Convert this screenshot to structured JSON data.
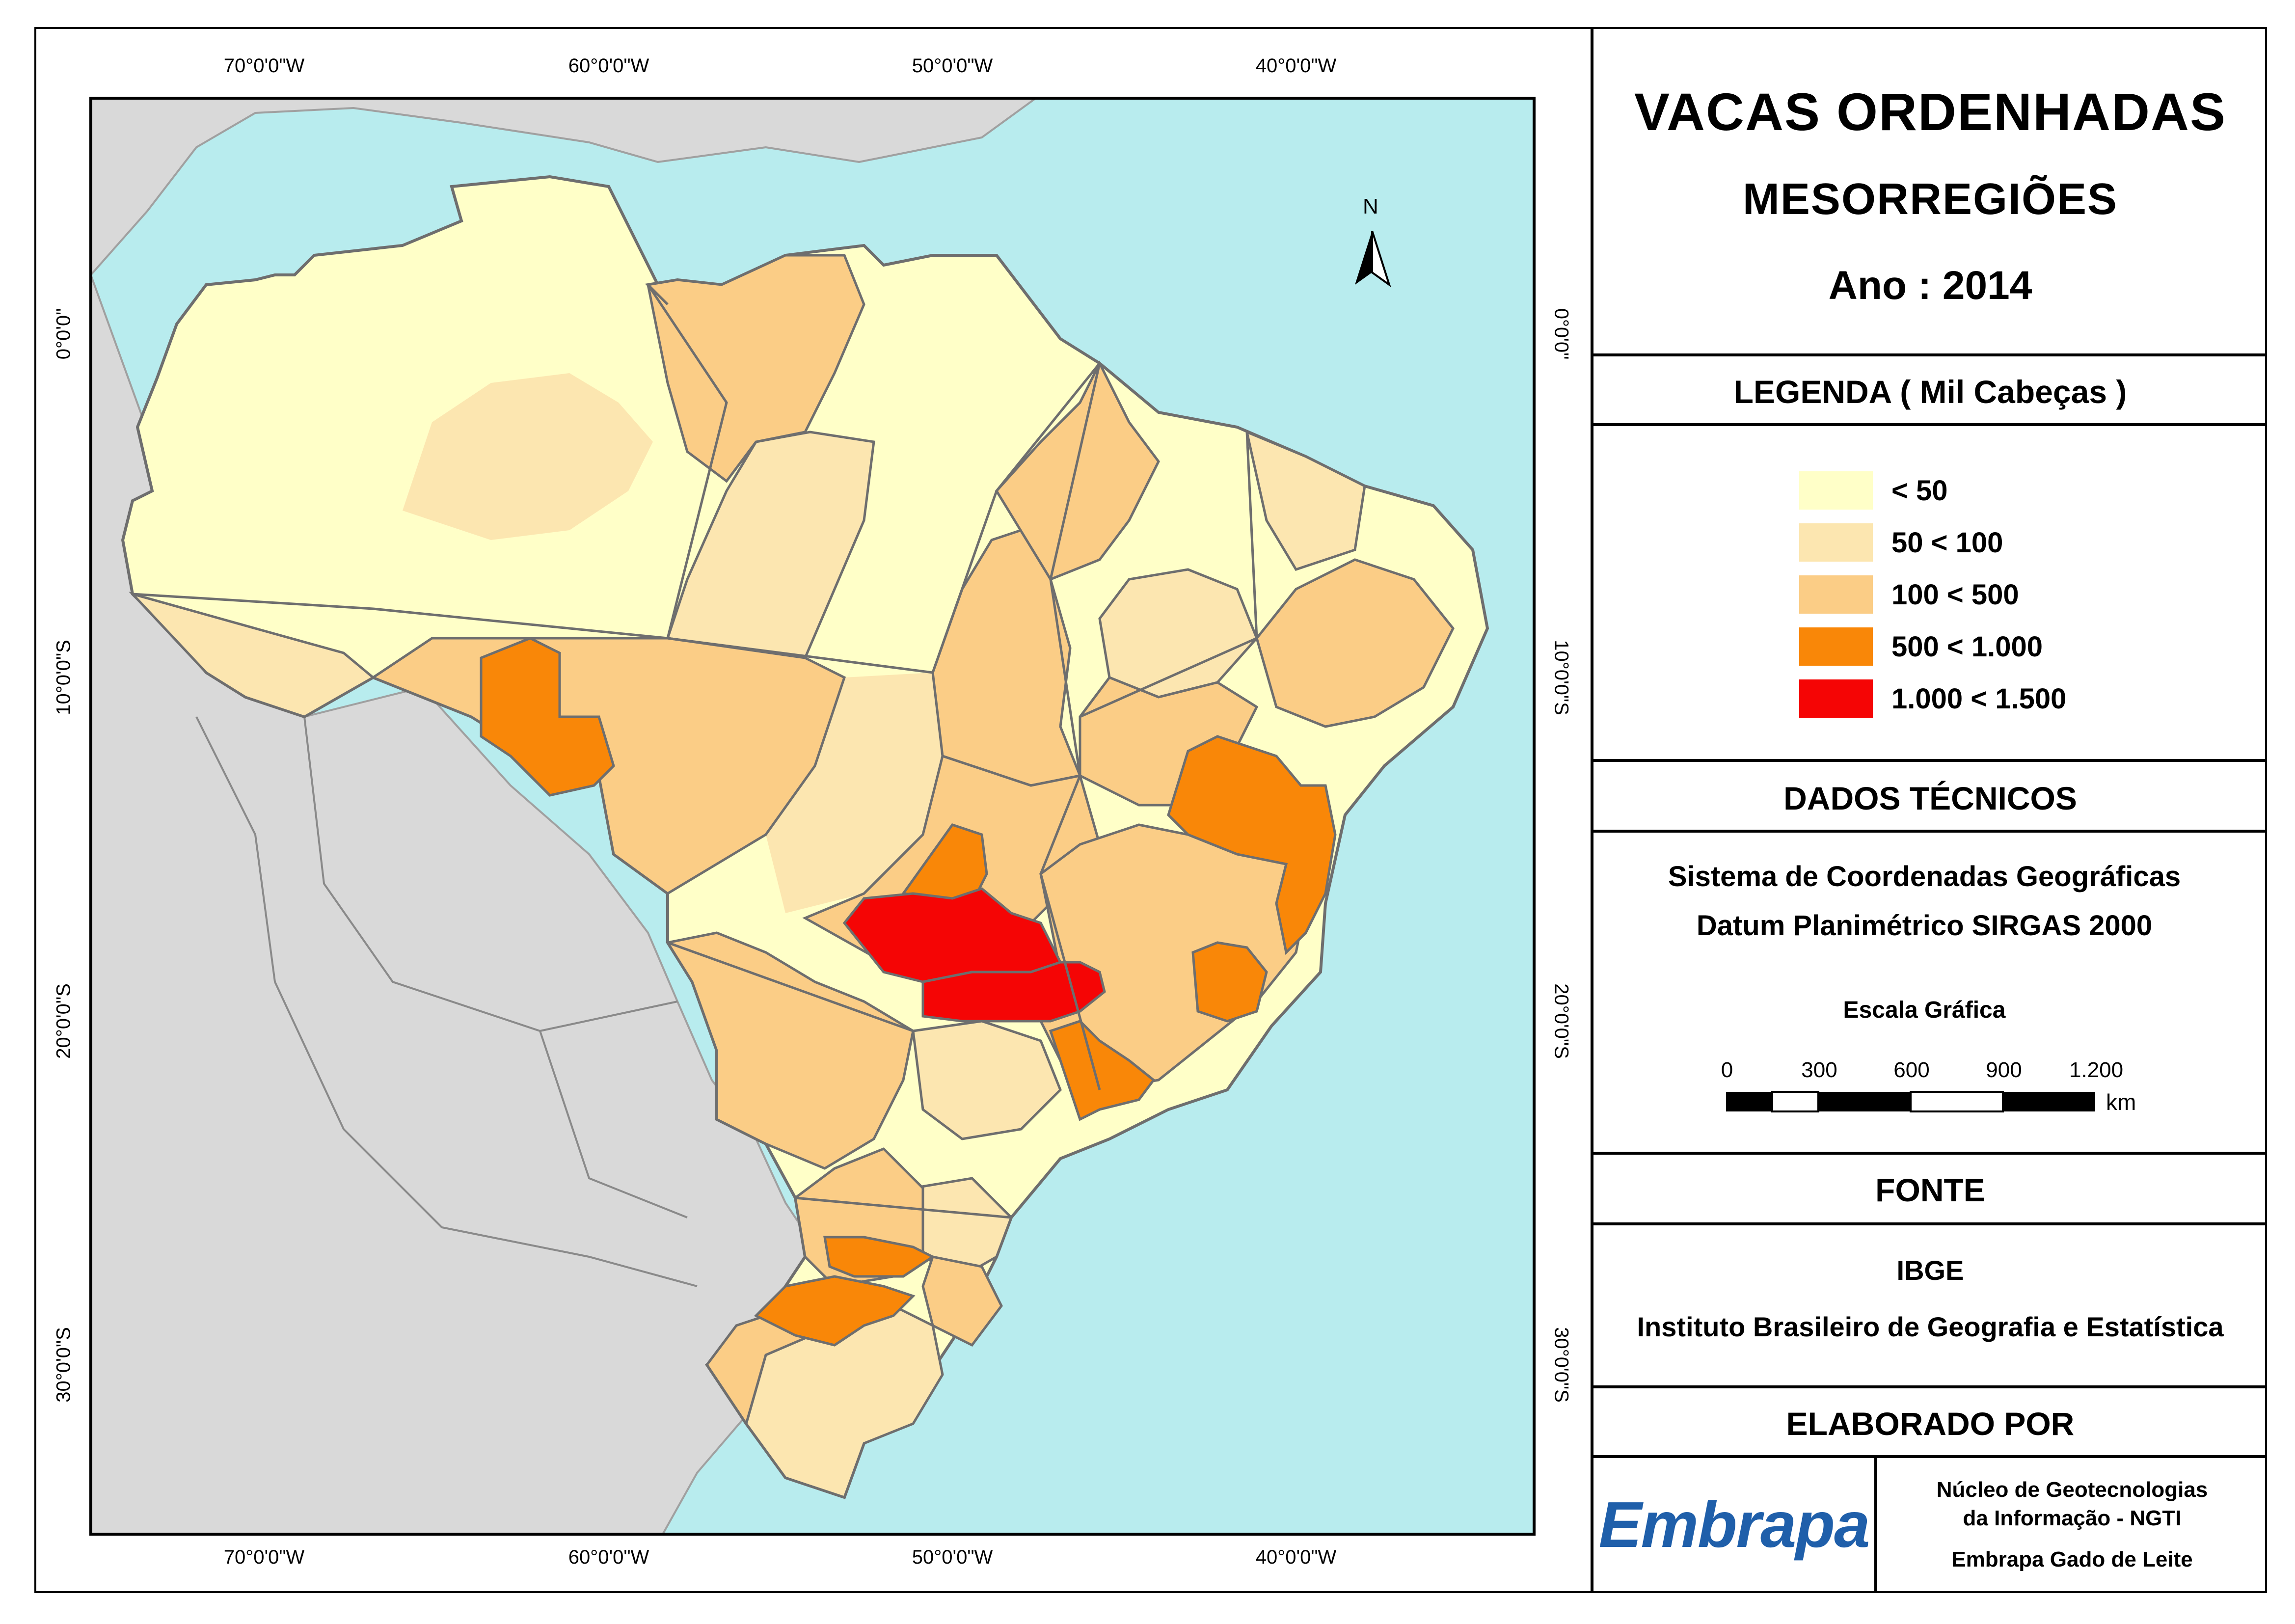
{
  "title": {
    "line1": "VACAS ORDENHADAS",
    "line2": "MESORREGIÕES",
    "line3": "Ano : 2014"
  },
  "legend": {
    "heading": "LEGENDA ( Mil Cabeças )",
    "items": [
      {
        "label": "< 50",
        "color": "#FFFFC8"
      },
      {
        "label": "50 < 100",
        "color": "#FCE6B0"
      },
      {
        "label": "100 < 500",
        "color": "#FBCD86"
      },
      {
        "label": "500 < 1.000",
        "color": "#F98708"
      },
      {
        "label": "1.000 < 1.500",
        "color": "#F50505"
      }
    ]
  },
  "technical": {
    "heading": "DADOS TÉCNICOS",
    "line1": "Sistema de Coordenadas Geográficas",
    "line2": "Datum Planimétrico SIRGAS 2000",
    "scale_title": "Escala Gráfica",
    "scale_labels": [
      "0",
      "300",
      "600",
      "900",
      "1.200"
    ],
    "scale_unit": "km"
  },
  "source": {
    "heading": "FONTE",
    "line1": "IBGE",
    "line2": "Instituto Brasileiro de Geografia e Estatística"
  },
  "author": {
    "heading": "ELABORADO POR",
    "logo_text": "Embrapa",
    "line1": "Núcleo de Geotecnologias",
    "line2": "da Informação - NGTI",
    "line3": "Embrapa Gado de Leite"
  },
  "map": {
    "north_label": "N",
    "lon_ticks": [
      "70°0'0\"W",
      "60°0'0\"W",
      "50°0'0\"W",
      "40°0'0\"W"
    ],
    "lat_ticks": [
      "0°0'0\"",
      "10°0'0\"S",
      "20°0'0\"S",
      "30°0'0\"S"
    ],
    "colors": {
      "ocean": "#B8ECEE",
      "land_outside": "#D9D9D9",
      "border": "#6E6E6E"
    }
  }
}
